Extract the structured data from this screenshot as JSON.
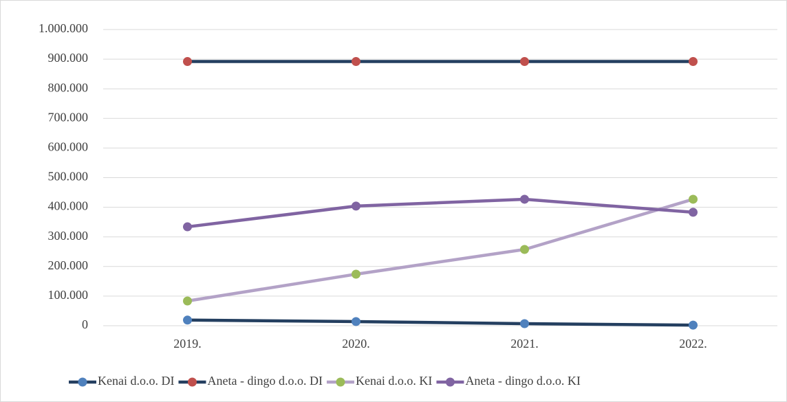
{
  "chart_data": {
    "type": "line",
    "categories": [
      "2019.",
      "2020.",
      "2021.",
      "2022."
    ],
    "series": [
      {
        "name": "Kenai d.o.o. DI",
        "color": "#243f60",
        "marker_color": "#4f81bd",
        "values": [
          19000,
          14000,
          7000,
          2000
        ]
      },
      {
        "name": "Aneta - dingo d.o.o. DI",
        "color": "#243f60",
        "marker_color": "#c0504d",
        "values": [
          892000,
          892000,
          892000,
          892000
        ]
      },
      {
        "name": "Kenai d.o.o. KI",
        "color": "#b3a2c7",
        "marker_color": "#9bbb59",
        "values": [
          83500,
          174000,
          257500,
          427000
        ]
      },
      {
        "name": "Aneta - dingo d.o.o. KI",
        "color": "#8064a2",
        "marker_color": "#8064a2",
        "values": [
          334000,
          404000,
          427000,
          383000
        ]
      }
    ],
    "ylim": [
      0,
      1000000
    ],
    "yticks": [
      0,
      {
        "value": 100000,
        "label": "100.000"
      },
      {
        "value": 200000,
        "label": "200.000"
      },
      {
        "value": 300000,
        "label": "300.000"
      },
      {
        "value": 400000,
        "label": "400.000"
      },
      {
        "value": 500000,
        "label": "500.000"
      },
      {
        "value": 600000,
        "label": "600.000"
      },
      {
        "value": 700000,
        "label": "700.000"
      },
      {
        "value": 800000,
        "label": "800.000"
      },
      {
        "value": 900000,
        "label": "900.000"
      },
      {
        "value": 1000000,
        "label": "1.000.000"
      }
    ],
    "grid": true,
    "legend": "bottom"
  }
}
